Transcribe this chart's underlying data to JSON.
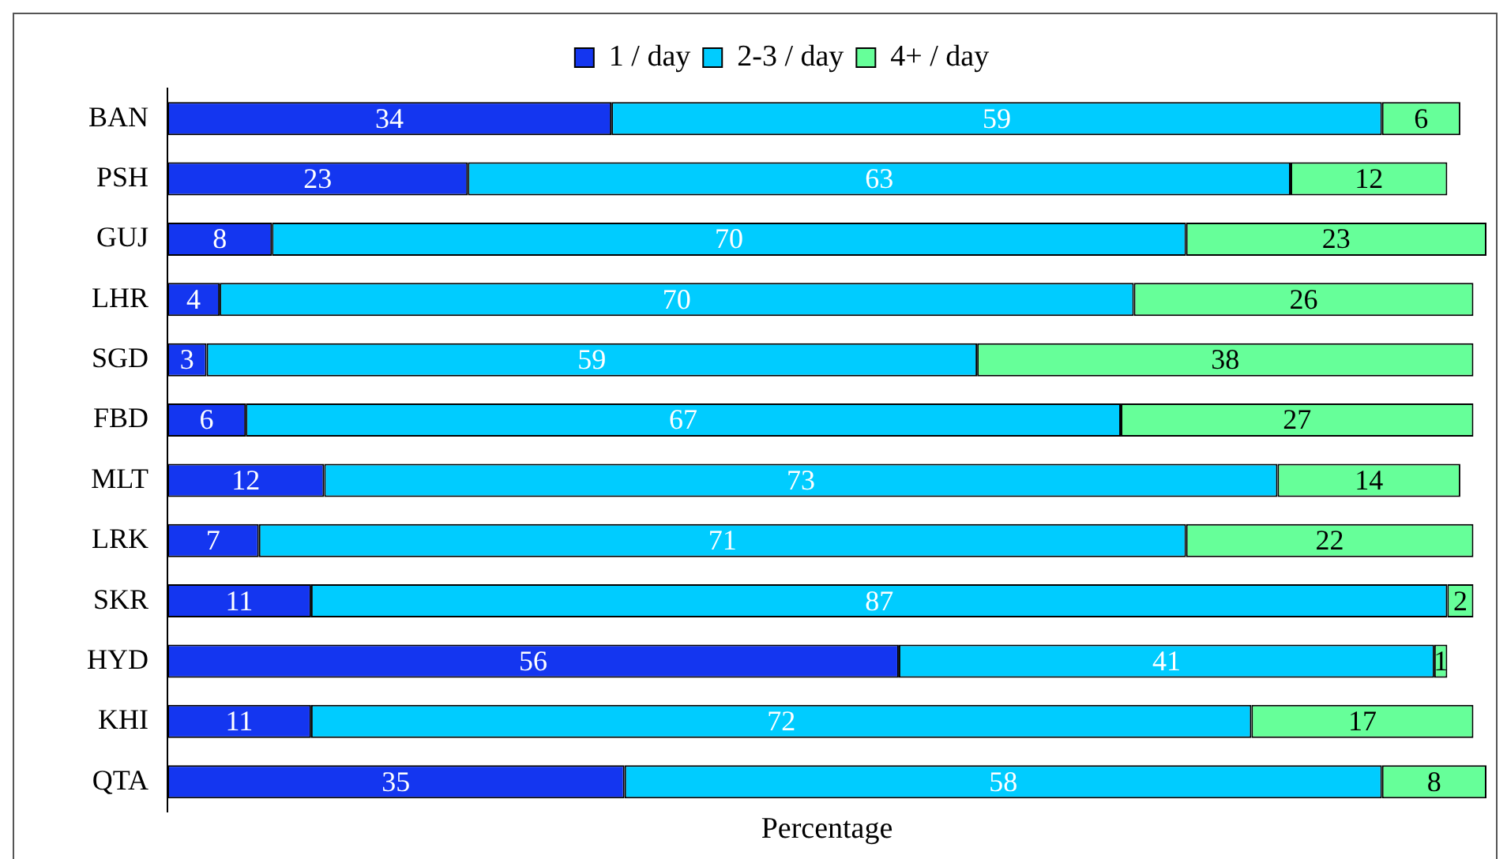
{
  "chart_data": {
    "type": "bar",
    "orientation": "horizontal",
    "stacked": true,
    "xlabel": "Percentage",
    "categories": [
      "BAN",
      "PSH",
      "GUJ",
      "LHR",
      "SGD",
      "FBD",
      "MLT",
      "LRK",
      "SKR",
      "HYD",
      "KHI",
      "QTA"
    ],
    "series": [
      {
        "name": "1 / day",
        "color": "#1436f0",
        "values": [
          34,
          23,
          8,
          4,
          3,
          6,
          12,
          7,
          11,
          56,
          11,
          35
        ]
      },
      {
        "name": "2-3 / day",
        "color": "#00ccff",
        "values": [
          59,
          63,
          70,
          70,
          59,
          67,
          73,
          71,
          87,
          41,
          72,
          58
        ]
      },
      {
        "name": "4+ / day",
        "color": "#66ff99",
        "values": [
          6,
          12,
          23,
          26,
          38,
          27,
          14,
          22,
          2,
          1,
          17,
          8
        ]
      }
    ],
    "xlim": [
      0,
      101
    ],
    "tick_labels": "y",
    "data_labels": true,
    "legend": "top",
    "grid": false
  }
}
